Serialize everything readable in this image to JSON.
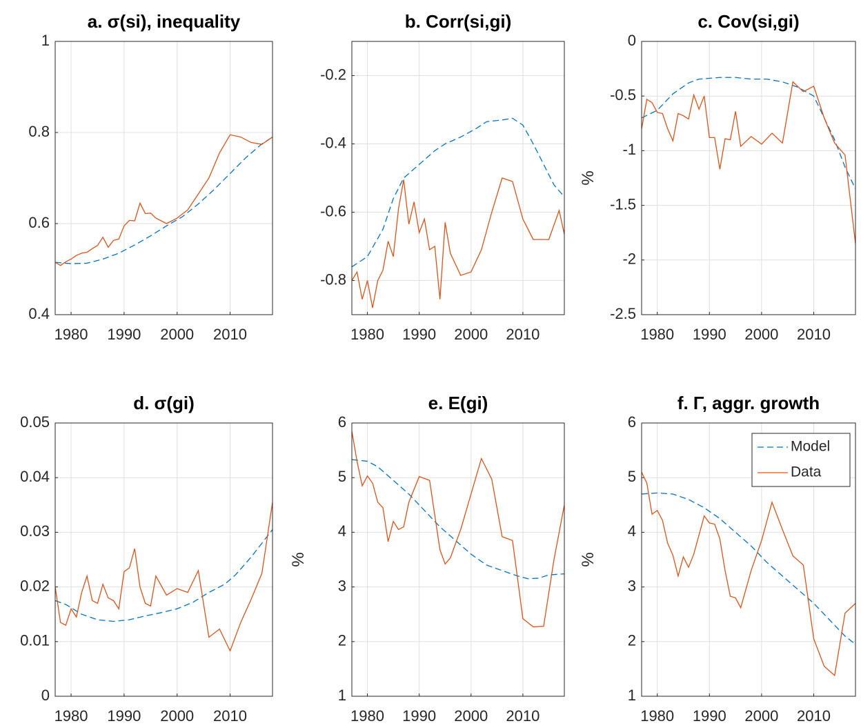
{
  "chart_data": [
    {
      "type": "line",
      "title": "a. σ(si), inequality",
      "xlim": [
        1977,
        2018
      ],
      "xticks": [
        1980,
        1990,
        2000,
        2010
      ],
      "ylim": [
        0.4,
        1
      ],
      "yticks": [
        0.4,
        0.6,
        0.8,
        1
      ],
      "grid": true,
      "legend": false,
      "series": [
        {
          "name": "Model",
          "color": "#0072bd",
          "linestyle": "dashed",
          "x": [
            1977,
            1980,
            1983,
            1986,
            1989,
            1992,
            1995,
            1998,
            2001,
            2004,
            2007,
            2010,
            2013,
            2016,
            2018
          ],
          "values": [
            0.515,
            0.512,
            0.513,
            0.522,
            0.535,
            0.553,
            0.573,
            0.595,
            0.615,
            0.643,
            0.675,
            0.71,
            0.745,
            0.775,
            0.79
          ]
        },
        {
          "name": "Data",
          "color": "#d95319",
          "linestyle": "solid",
          "x": [
            1977,
            1978,
            1979,
            1980,
            1981,
            1982,
            1983,
            1984,
            1985,
            1986,
            1987,
            1988,
            1989,
            1990,
            1991,
            1992,
            1993,
            1994,
            1995,
            1996,
            1998,
            2000,
            2002,
            2004,
            2006,
            2008,
            2010,
            2012,
            2014,
            2016,
            2018
          ],
          "values": [
            0.515,
            0.508,
            0.516,
            0.522,
            0.53,
            0.535,
            0.537,
            0.545,
            0.552,
            0.57,
            0.548,
            0.563,
            0.566,
            0.595,
            0.607,
            0.606,
            0.645,
            0.622,
            0.623,
            0.612,
            0.6,
            0.612,
            0.63,
            0.665,
            0.7,
            0.755,
            0.795,
            0.79,
            0.778,
            0.774,
            0.79
          ]
        }
      ]
    },
    {
      "type": "line",
      "title": "b. Corr(si,gi)",
      "xlim": [
        1977,
        2018
      ],
      "xticks": [
        1980,
        1990,
        2000,
        2010
      ],
      "ylim": [
        -0.9,
        -0.1
      ],
      "yticks": [
        -0.8,
        -0.6,
        -0.4,
        -0.2
      ],
      "grid": true,
      "legend": false,
      "series": [
        {
          "name": "Model",
          "color": "#0072bd",
          "linestyle": "dashed",
          "x": [
            1977,
            1980,
            1983,
            1985,
            1987,
            1990,
            1993,
            1995,
            1998,
            2001,
            2003,
            2006,
            2008,
            2010,
            2012,
            2014,
            2016,
            2018
          ],
          "values": [
            -0.76,
            -0.73,
            -0.65,
            -0.56,
            -0.5,
            -0.46,
            -0.42,
            -0.4,
            -0.38,
            -0.355,
            -0.335,
            -0.33,
            -0.325,
            -0.345,
            -0.4,
            -0.46,
            -0.52,
            -0.555
          ]
        },
        {
          "name": "Data",
          "color": "#d95319",
          "linestyle": "solid",
          "x": [
            1977,
            1978,
            1979,
            1980,
            1981,
            1982,
            1983,
            1984,
            1985,
            1986,
            1987,
            1988,
            1989,
            1990,
            1991,
            1992,
            1993,
            1994,
            1995,
            1996,
            1998,
            2000,
            2002,
            2004,
            2006,
            2008,
            2010,
            2012,
            2015,
            2017,
            2018
          ],
          "values": [
            -0.8,
            -0.775,
            -0.855,
            -0.8,
            -0.88,
            -0.8,
            -0.77,
            -0.685,
            -0.73,
            -0.59,
            -0.505,
            -0.635,
            -0.57,
            -0.66,
            -0.62,
            -0.71,
            -0.7,
            -0.855,
            -0.63,
            -0.72,
            -0.785,
            -0.775,
            -0.71,
            -0.6,
            -0.5,
            -0.51,
            -0.62,
            -0.68,
            -0.68,
            -0.595,
            -0.665
          ]
        }
      ]
    },
    {
      "type": "line",
      "title": "c. Cov(si,gi)",
      "ylabel": "%",
      "xlim": [
        1977,
        2018
      ],
      "xticks": [
        1980,
        1990,
        2000,
        2010
      ],
      "ylim": [
        -2.5,
        0
      ],
      "yticks": [
        -2.5,
        -2,
        -1.5,
        -1,
        -0.5,
        0
      ],
      "grid": true,
      "legend": false,
      "series": [
        {
          "name": "Model",
          "color": "#0072bd",
          "linestyle": "dashed",
          "x": [
            1977,
            1980,
            1983,
            1986,
            1988,
            1992,
            1995,
            1998,
            2001,
            2004,
            2007,
            2010,
            2012,
            2014,
            2016,
            2018
          ],
          "values": [
            -0.7,
            -0.63,
            -0.48,
            -0.38,
            -0.345,
            -0.33,
            -0.33,
            -0.345,
            -0.345,
            -0.37,
            -0.42,
            -0.5,
            -0.7,
            -0.9,
            -1.15,
            -1.35
          ]
        },
        {
          "name": "Data",
          "color": "#d95319",
          "linestyle": "solid",
          "x": [
            1977,
            1978,
            1979,
            1980,
            1981,
            1982,
            1983,
            1984,
            1985,
            1986,
            1987,
            1988,
            1989,
            1990,
            1991,
            1992,
            1993,
            1994,
            1995,
            1996,
            1998,
            2000,
            2002,
            2004,
            2006,
            2008,
            2010,
            2012,
            2014,
            2016,
            2018
          ],
          "values": [
            -0.8,
            -0.53,
            -0.56,
            -0.65,
            -0.66,
            -0.8,
            -0.91,
            -0.66,
            -0.68,
            -0.71,
            -0.49,
            -0.62,
            -0.5,
            -0.88,
            -0.88,
            -1.17,
            -0.89,
            -0.9,
            -0.64,
            -0.96,
            -0.87,
            -0.94,
            -0.84,
            -0.93,
            -0.37,
            -0.46,
            -0.41,
            -0.7,
            -0.93,
            -1.04,
            -1.85
          ]
        }
      ]
    },
    {
      "type": "line",
      "title": "d. σ(gi)",
      "xlim": [
        1977,
        2018
      ],
      "xticks": [
        1980,
        1990,
        2000,
        2010
      ],
      "ylim": [
        0,
        0.05
      ],
      "yticks": [
        0,
        0.01,
        0.02,
        0.03,
        0.04,
        0.05
      ],
      "grid": true,
      "legend": false,
      "series": [
        {
          "name": "Model",
          "color": "#0072bd",
          "linestyle": "dashed",
          "x": [
            1977,
            1979,
            1982,
            1985,
            1988,
            1991,
            1994,
            1997,
            2000,
            2003,
            2006,
            2009,
            2011,
            2014,
            2016,
            2018
          ],
          "values": [
            0.0175,
            0.0168,
            0.015,
            0.014,
            0.0137,
            0.014,
            0.0147,
            0.0153,
            0.016,
            0.0172,
            0.019,
            0.0205,
            0.0222,
            0.0255,
            0.028,
            0.0305
          ]
        },
        {
          "name": "Data",
          "color": "#d95319",
          "linestyle": "solid",
          "x": [
            1977,
            1978,
            1979,
            1980,
            1981,
            1982,
            1983,
            1984,
            1985,
            1986,
            1987,
            1988,
            1989,
            1990,
            1991,
            1992,
            1993,
            1994,
            1995,
            1996,
            1998,
            2000,
            2002,
            2004,
            2006,
            2008,
            2010,
            2012,
            2014,
            2016,
            2018
          ],
          "values": [
            0.02,
            0.0135,
            0.013,
            0.016,
            0.0145,
            0.019,
            0.022,
            0.0175,
            0.017,
            0.0205,
            0.018,
            0.0175,
            0.016,
            0.0228,
            0.0235,
            0.027,
            0.02,
            0.017,
            0.0165,
            0.022,
            0.0185,
            0.0197,
            0.019,
            0.023,
            0.0108,
            0.0123,
            0.0083,
            0.0135,
            0.0178,
            0.0225,
            0.0355
          ]
        }
      ]
    },
    {
      "type": "line",
      "title": "e. E(gi)",
      "ylabel": "%",
      "xlim": [
        1977,
        2018
      ],
      "xticks": [
        1980,
        1990,
        2000,
        2010
      ],
      "ylim": [
        1,
        6
      ],
      "yticks": [
        1,
        2,
        3,
        4,
        5,
        6
      ],
      "grid": true,
      "legend": false,
      "series": [
        {
          "name": "Model",
          "color": "#0072bd",
          "linestyle": "dashed",
          "x": [
            1977,
            1980,
            1982,
            1985,
            1988,
            1991,
            1994,
            1997,
            2000,
            2003,
            2006,
            2009,
            2011,
            2013,
            2015,
            2018
          ],
          "values": [
            5.33,
            5.3,
            5.2,
            4.95,
            4.7,
            4.4,
            4.1,
            3.85,
            3.6,
            3.4,
            3.3,
            3.2,
            3.15,
            3.16,
            3.22,
            3.24
          ]
        },
        {
          "name": "Data",
          "color": "#d95319",
          "linestyle": "solid",
          "x": [
            1977,
            1978,
            1979,
            1980,
            1981,
            1982,
            1983,
            1984,
            1985,
            1986,
            1987,
            1988,
            1990,
            1992,
            1994,
            1995,
            1996,
            1998,
            2000,
            2002,
            2004,
            2006,
            2008,
            2010,
            2012,
            2014,
            2016,
            2018
          ],
          "values": [
            5.85,
            5.3,
            4.85,
            5.03,
            4.9,
            4.55,
            4.45,
            3.83,
            4.2,
            4.05,
            4.1,
            4.55,
            5.02,
            4.95,
            3.68,
            3.42,
            3.53,
            4.05,
            4.7,
            5.35,
            4.97,
            3.92,
            3.85,
            2.42,
            2.27,
            2.28,
            3.5,
            4.5
          ]
        }
      ]
    },
    {
      "type": "line",
      "title": "f. Γ, aggr. growth",
      "ylabel": "%",
      "xlim": [
        1977,
        2018
      ],
      "xticks": [
        1980,
        1990,
        2000,
        2010
      ],
      "ylim": [
        1,
        6
      ],
      "yticks": [
        1,
        2,
        3,
        4,
        5,
        6
      ],
      "grid": true,
      "legend": true,
      "legend_position": "northeast",
      "series": [
        {
          "name": "Model",
          "color": "#0072bd",
          "linestyle": "dashed",
          "x": [
            1977,
            1980,
            1983,
            1986,
            1989,
            1992,
            1995,
            1998,
            2001,
            2004,
            2007,
            2010,
            2013,
            2016,
            2018
          ],
          "values": [
            4.7,
            4.72,
            4.7,
            4.6,
            4.45,
            4.25,
            4.0,
            3.75,
            3.45,
            3.2,
            2.95,
            2.7,
            2.4,
            2.1,
            1.95
          ]
        },
        {
          "name": "Data",
          "color": "#d95319",
          "linestyle": "solid",
          "x": [
            1977,
            1978,
            1979,
            1980,
            1981,
            1982,
            1983,
            1984,
            1985,
            1986,
            1987,
            1989,
            1990,
            1991,
            1992,
            1993,
            1994,
            1995,
            1996,
            1998,
            2000,
            2002,
            2004,
            2006,
            2008,
            2010,
            2012,
            2014,
            2016,
            2018
          ],
          "values": [
            5.1,
            4.9,
            4.33,
            4.4,
            4.22,
            3.8,
            3.58,
            3.2,
            3.55,
            3.36,
            3.6,
            4.3,
            4.17,
            4.15,
            3.88,
            3.3,
            2.83,
            2.8,
            2.62,
            3.3,
            3.85,
            4.55,
            4.05,
            3.57,
            3.4,
            2.05,
            1.55,
            1.38,
            2.52,
            2.7
          ]
        }
      ]
    }
  ]
}
